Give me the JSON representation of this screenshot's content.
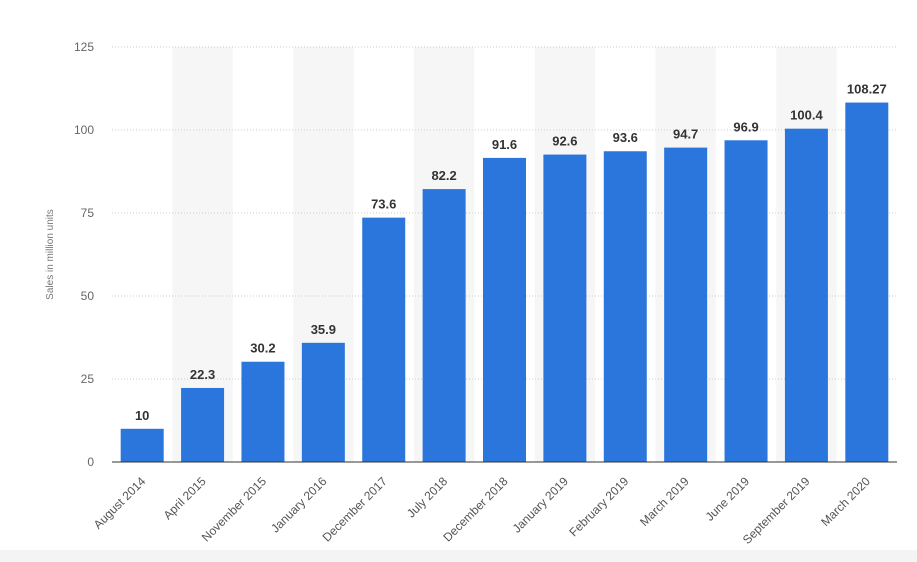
{
  "chart_data": {
    "type": "bar",
    "title": "",
    "xlabel": "",
    "ylabel": "Sales in million units",
    "categories": [
      "August 2014",
      "April 2015",
      "November 2015",
      "January 2016",
      "December 2017",
      "July 2018",
      "December 2018",
      "January 2019",
      "February 2019",
      "March 2019",
      "June 2019",
      "September 2019",
      "March 2020"
    ],
    "values": [
      10,
      22.3,
      30.2,
      35.9,
      73.6,
      82.2,
      91.6,
      92.6,
      93.6,
      94.7,
      96.9,
      100.4,
      108.27
    ],
    "value_labels": [
      "10",
      "22.3",
      "30.2",
      "35.9",
      "73.6",
      "82.2",
      "91.6",
      "92.6",
      "93.6",
      "94.7",
      "96.9",
      "100.4",
      "108.27"
    ],
    "ylim": [
      0,
      125
    ],
    "yticks": [
      0,
      25,
      50,
      75,
      100,
      125
    ],
    "grid": true,
    "alternating_band_shading": true,
    "legend": "none",
    "colors": {
      "bar": "#2b76dd",
      "band": "#f6f6f6",
      "grid": "#cccccc"
    }
  }
}
